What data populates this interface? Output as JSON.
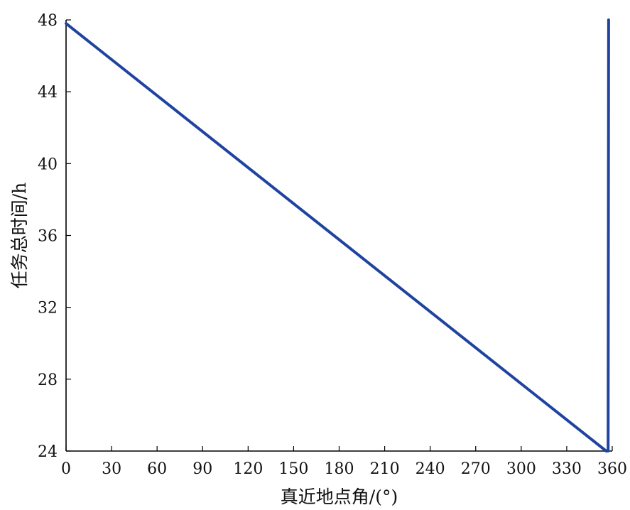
{
  "chart_data": {
    "type": "line",
    "xlabel": "真近地点角/(°)",
    "ylabel": "任务总时间/h",
    "xlim": [
      0,
      360
    ],
    "ylim": [
      24,
      48
    ],
    "x_ticks": [
      0,
      30,
      60,
      90,
      120,
      150,
      180,
      210,
      240,
      270,
      300,
      330,
      360
    ],
    "y_ticks": [
      24,
      28,
      32,
      36,
      40,
      44,
      48
    ],
    "grid": false,
    "legend": "none",
    "series": [
      {
        "color": "#1f44a0",
        "x": [
          0,
          356,
          357.3,
          357.6
        ],
        "y": [
          47.8,
          24.0,
          24.0,
          48.0
        ]
      }
    ]
  }
}
